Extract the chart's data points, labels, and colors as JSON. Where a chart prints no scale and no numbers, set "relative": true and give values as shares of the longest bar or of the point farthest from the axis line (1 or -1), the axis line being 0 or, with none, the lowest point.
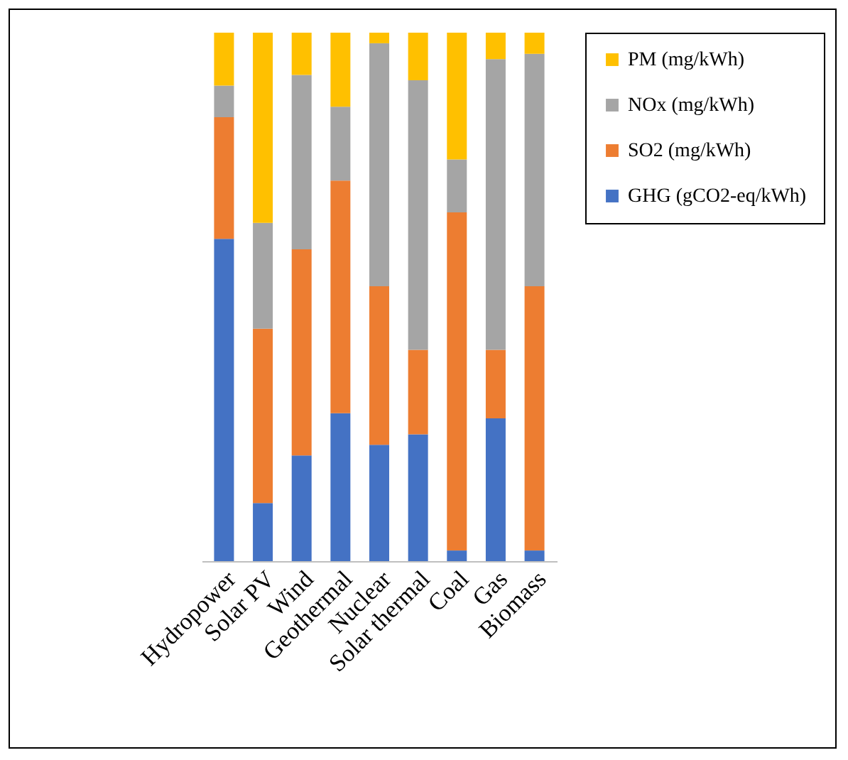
{
  "chart_data": {
    "type": "bar",
    "stacked": true,
    "relative": true,
    "legend": "right",
    "categories": [
      "Hydropower",
      "Solar PV",
      "Wind",
      "Geothermal",
      "Nuclear",
      "Solar thermal",
      "Coal",
      "Gas",
      "Biomass"
    ],
    "series": [
      {
        "name": "GHG (gCO2-eq/kWh)",
        "color": "#4472c4",
        "values": [
          0.61,
          0.11,
          0.2,
          0.28,
          0.22,
          0.24,
          0.02,
          0.27,
          0.02
        ]
      },
      {
        "name": "SO2 (mg/kWh)",
        "color": "#ed7d31",
        "values": [
          0.23,
          0.33,
          0.39,
          0.44,
          0.3,
          0.16,
          0.64,
          0.13,
          0.5
        ]
      },
      {
        "name": "NOx (mg/kWh)",
        "color": "#a5a5a5",
        "values": [
          0.06,
          0.2,
          0.33,
          0.14,
          0.46,
          0.51,
          0.1,
          0.55,
          0.44
        ]
      },
      {
        "name": "PM (mg/kWh)",
        "color": "#ffc000",
        "values": [
          0.1,
          0.36,
          0.08,
          0.14,
          0.02,
          0.09,
          0.24,
          0.05,
          0.04
        ]
      }
    ]
  }
}
